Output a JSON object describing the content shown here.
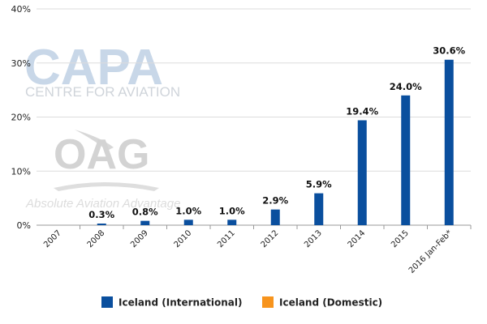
{
  "chart_data": {
    "type": "bar",
    "categories": [
      "2007",
      "2008",
      "2009",
      "2010",
      "2011",
      "2012",
      "2013",
      "2014",
      "2015",
      "2016 Jan-Feb*"
    ],
    "series": [
      {
        "name": "Iceland (International)",
        "values": [
          0,
          0.3,
          0.8,
          1.0,
          1.0,
          2.9,
          5.9,
          19.4,
          24.0,
          30.6
        ],
        "color": "#0a4f9e"
      },
      {
        "name": "Iceland (Domestic)",
        "values": [
          0,
          0,
          0,
          0,
          0,
          0,
          0,
          0,
          0,
          0
        ],
        "color": "#f7941d"
      }
    ],
    "data_labels": [
      "",
      "0.3%",
      "0.8%",
      "1.0%",
      "1.0%",
      "2.9%",
      "5.9%",
      "19.4%",
      "24.0%",
      "30.6%"
    ],
    "yticks": [
      "0%",
      "10%",
      "20%",
      "30%",
      "40%"
    ],
    "ylim": [
      0,
      40
    ],
    "legend_position": "bottom"
  },
  "watermarks": {
    "capa": "CAPA",
    "capa_sub": "CENTRE FOR AVIATION",
    "oag": "OAG",
    "oag_sub": "Absolute Aviation Advantage"
  }
}
